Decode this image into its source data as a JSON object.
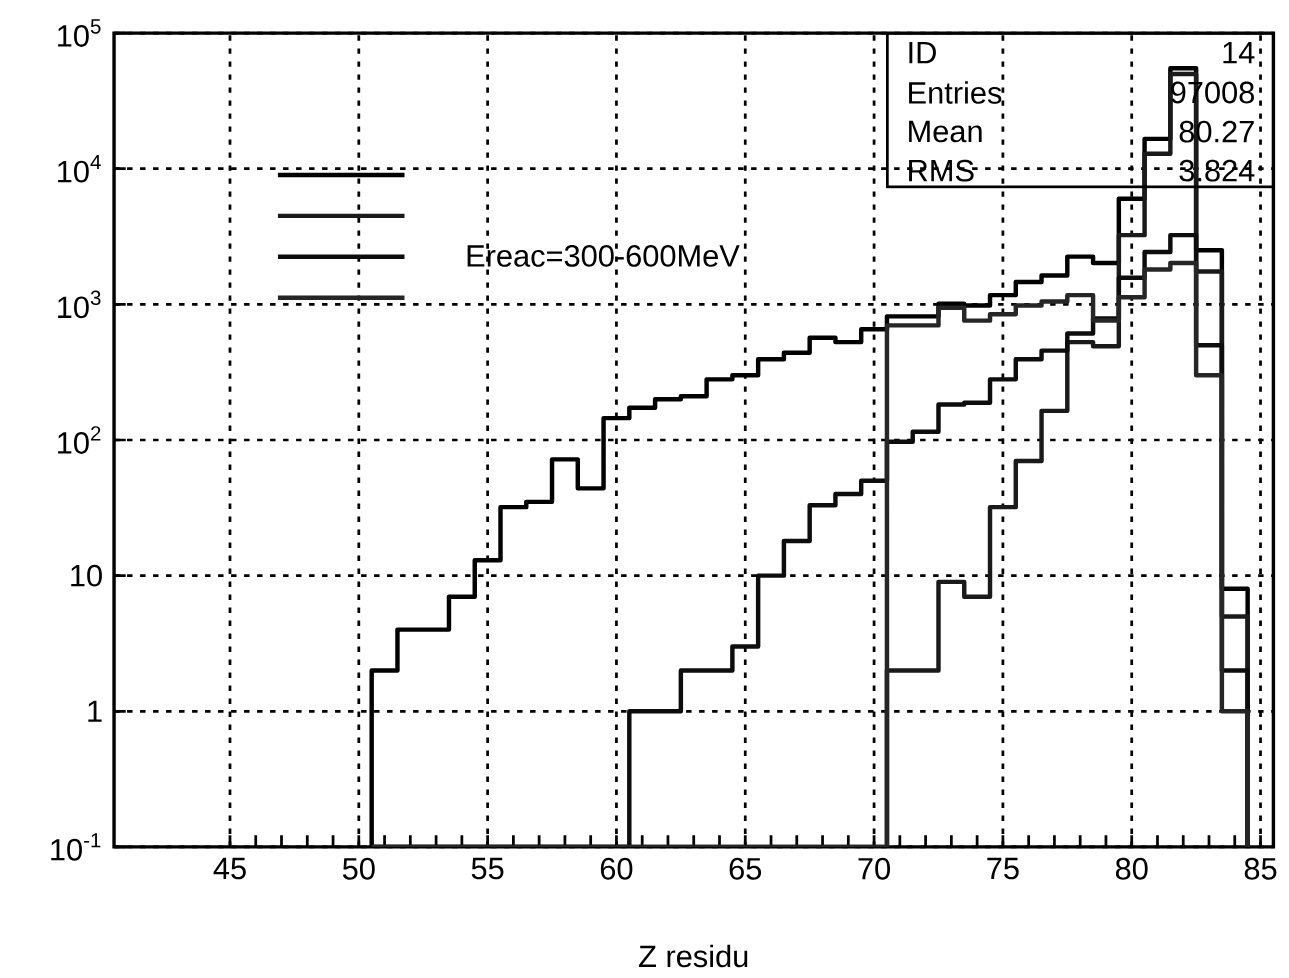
{
  "chart_data": {
    "type": "histogram",
    "xlabel": "Z residu",
    "xlim": [
      40.5,
      85.5
    ],
    "ylim": [
      0.1,
      100000
    ],
    "log": true,
    "grid": true,
    "legend": "top left",
    "xticks": [
      45,
      50,
      55,
      60,
      65,
      70,
      75,
      80,
      85
    ],
    "yticks": [
      {
        "value": 0.1,
        "label": "10$^{-1}$"
      },
      1,
      10,
      {
        "value": 100,
        "label": "10$^{2}$"
      },
      {
        "value": 1000,
        "label": "10$^{3}$"
      },
      {
        "value": 10000,
        "label": "10$^{4}$"
      },
      {
        "value": 100000,
        "label": "10$^{5}$"
      }
    ],
    "annotations": [
      "ID",
      "14",
      "Entries",
      "97008",
      "Mean",
      "80.27",
      "RMS",
      "3.824"
    ],
    "bins": [
      50.5,
      51.5,
      52.5,
      53.5,
      54.5,
      55.5,
      56.5,
      57.5,
      58.5,
      59.5,
      60.5,
      61.5,
      62.5,
      63.5,
      64.5,
      65.5,
      66.5,
      67.5,
      68.5,
      69.5,
      70.5,
      71.5,
      72.5,
      73.5,
      74.5,
      75.5,
      76.5,
      77.5,
      78.5,
      79.5,
      80.5,
      81.5,
      82.5,
      83.5,
      84.5
    ],
    "series": [
      {
        "color": "#000000",
        "values": [
          2,
          4,
          4,
          7,
          13,
          32,
          35,
          72,
          44,
          145,
          173,
          200,
          210,
          280,
          300,
          394,
          440,
          567,
          527,
          656,
          816,
          816,
          1010,
          980,
          1170,
          1460,
          1630,
          2250,
          2020,
          6010,
          16600,
          55100,
          2510,
          8
        ]
      },
      {
        "color": "#1a1a1a",
        "values": [
          null,
          null,
          null,
          null,
          null,
          null,
          null,
          null,
          null,
          null,
          null,
          null,
          null,
          null,
          null,
          null,
          null,
          null,
          null,
          null,
          2,
          2,
          9,
          7,
          32,
          70,
          164,
          527,
          491,
          3240,
          12900,
          50000,
          1750,
          5
        ]
      },
      {
        "name": "Ereac=300-600MeV",
        "color": "#0d0d0d",
        "values": [
          null,
          null,
          null,
          null,
          null,
          null,
          null,
          null,
          null,
          null,
          1,
          1,
          2,
          2,
          3,
          10,
          18,
          33,
          40,
          50,
          97,
          115,
          183,
          188,
          280,
          394,
          456,
          610,
          787,
          1570,
          2430,
          3240,
          500,
          2
        ]
      },
      {
        "color": "#262626",
        "values": [
          null,
          null,
          null,
          null,
          null,
          null,
          null,
          null,
          null,
          null,
          null,
          null,
          null,
          null,
          null,
          null,
          null,
          null,
          null,
          null,
          700,
          700,
          943,
          759,
          846,
          980,
          1050,
          1170,
          760,
          1130,
          1810,
          2020,
          300,
          1
        ]
      }
    ]
  }
}
